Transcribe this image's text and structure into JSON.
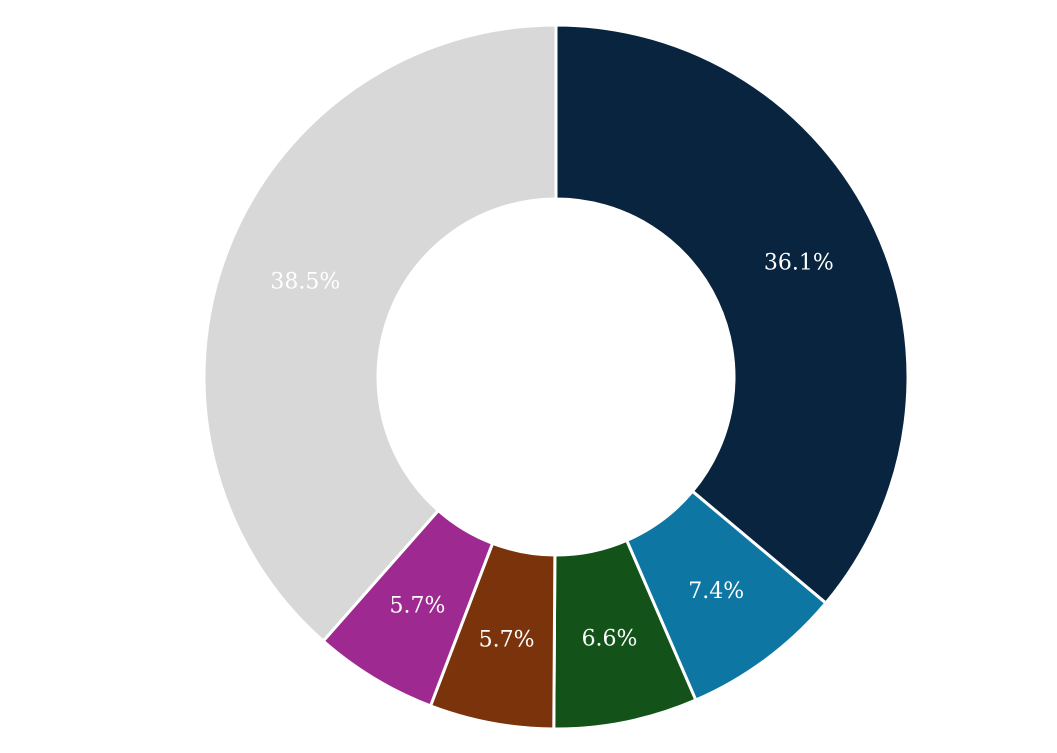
{
  "chart_data": {
    "type": "pie",
    "variant": "donut",
    "slices": [
      {
        "label": "36.1%",
        "value": 36.1,
        "color": "#08243f"
      },
      {
        "label": "7.4%",
        "value": 7.4,
        "color": "#0e76a2"
      },
      {
        "label": "6.6%",
        "value": 6.6,
        "color": "#135319"
      },
      {
        "label": "5.7%",
        "value": 5.7,
        "color": "#7b330b"
      },
      {
        "label": "5.7%",
        "value": 5.7,
        "color": "#9e2a91"
      },
      {
        "label": "38.5%",
        "value": 38.5,
        "color": "#d8d8d8"
      }
    ],
    "start": "12 o'clock",
    "direction": "clockwise",
    "legend": "none",
    "title": ""
  }
}
